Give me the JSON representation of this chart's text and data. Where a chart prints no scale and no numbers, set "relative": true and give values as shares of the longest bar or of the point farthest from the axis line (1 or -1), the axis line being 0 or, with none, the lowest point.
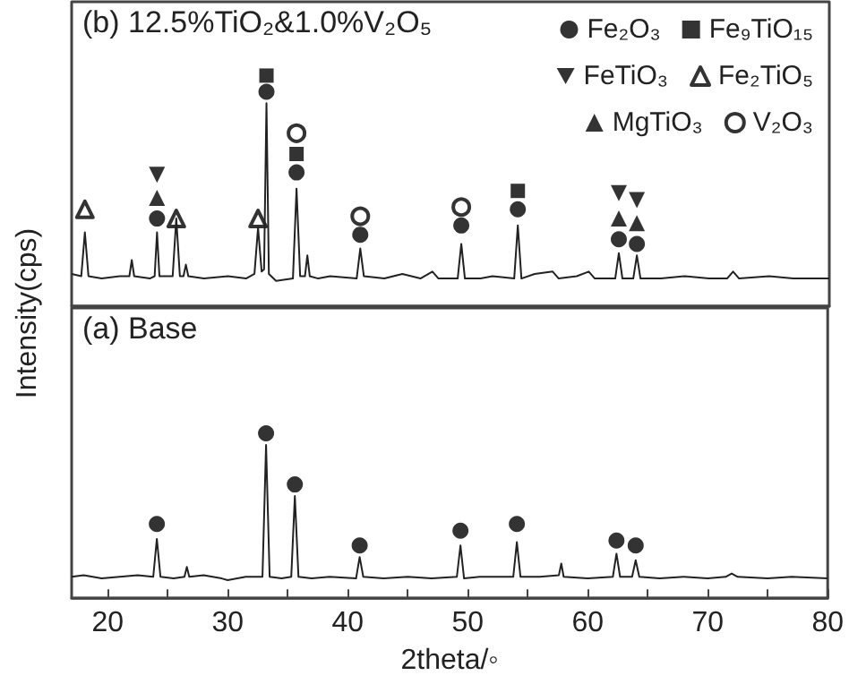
{
  "chart_data": [
    {
      "type": "line",
      "relative": true,
      "annotations": [
        "(b) 12.5%TiO₂&1.0%V₂O₅"
      ],
      "xlim": [
        17,
        80
      ],
      "tick_labels": false,
      "legend": "top right",
      "grid": false,
      "line_style": "solid",
      "marker": "none",
      "series": [
        {
          "color": "#222222",
          "x": [
            17,
            17.8,
            18.1,
            18.4,
            19.5,
            21,
            21.8,
            22,
            22.2,
            23.5,
            23.9,
            24.1,
            24.3,
            25.4,
            25.7,
            26,
            26.3,
            26.5,
            26.7,
            28,
            30,
            31.5,
            32.2,
            32.5,
            32.8,
            33,
            33.2,
            33.4,
            34,
            35.4,
            35.7,
            36,
            36.4,
            36.6,
            36.8,
            37.5,
            38.5,
            40.7,
            41,
            41.3,
            43,
            44.5,
            46,
            47,
            47.5,
            49.1,
            49.4,
            49.7,
            51,
            52,
            53.8,
            54.1,
            54.4,
            55.5,
            57,
            57.5,
            59,
            60,
            60.5,
            62.2,
            62.5,
            62.8,
            63.7,
            64,
            64.3,
            66,
            68,
            70,
            71.5,
            72,
            72.5,
            75,
            77,
            80
          ],
          "values": [
            0.14,
            0.13,
            0.32,
            0.13,
            0.12,
            0.13,
            0.13,
            0.2,
            0.13,
            0.12,
            0.13,
            0.32,
            0.13,
            0.13,
            0.38,
            0.13,
            0.13,
            0.18,
            0.13,
            0.12,
            0.13,
            0.12,
            0.14,
            0.34,
            0.15,
            0.16,
            0.88,
            0.14,
            0.11,
            0.12,
            0.51,
            0.13,
            0.13,
            0.22,
            0.13,
            0.12,
            0.13,
            0.12,
            0.25,
            0.13,
            0.12,
            0.14,
            0.12,
            0.15,
            0.12,
            0.12,
            0.27,
            0.12,
            0.12,
            0.13,
            0.12,
            0.35,
            0.12,
            0.14,
            0.15,
            0.12,
            0.13,
            0.15,
            0.12,
            0.12,
            0.23,
            0.12,
            0.12,
            0.22,
            0.12,
            0.12,
            0.13,
            0.12,
            0.12,
            0.15,
            0.12,
            0.13,
            0.12,
            0.12
          ]
        },
        {
          "type": "scatter",
          "name": "Fe₂O₃",
          "marker": "circle",
          "color": "#000000",
          "x": [
            24.1,
            33.2,
            35.7,
            41,
            49.4,
            54.1,
            62.5,
            64
          ],
          "values": [
            0.38,
            0.93,
            0.58,
            0.31,
            0.35,
            0.42,
            0.29,
            0.27
          ]
        },
        {
          "type": "scatter",
          "name": "Fe₉TiO₁₅",
          "marker": "square",
          "color": "#000000",
          "x": [
            33.2,
            35.7,
            54.1
          ],
          "values": [
            1,
            0.66,
            0.5
          ]
        },
        {
          "type": "scatter",
          "name": "FeTiO₃",
          "marker": "triangle-down",
          "color": "#000000",
          "x": [
            24.1,
            62.5,
            64
          ],
          "values": [
            0.57,
            0.49,
            0.46
          ]
        },
        {
          "type": "scatter",
          "name": "Fe₂TiO₅",
          "marker": "triangle-open",
          "color": "#000000",
          "x": [
            18.1,
            25.7,
            32.5
          ],
          "values": [
            0.42,
            0.38,
            0.38
          ]
        },
        {
          "type": "scatter",
          "name": "MgTiO₃",
          "marker": "triangle",
          "color": "#000000",
          "x": [
            24.1,
            62.5,
            64
          ],
          "values": [
            0.47,
            0.38,
            0.36
          ]
        },
        {
          "type": "scatter",
          "name": "V₂O₃",
          "marker": "circle-open",
          "color": "#000000",
          "x": [
            35.7,
            41,
            49.4
          ],
          "values": [
            0.75,
            0.39,
            0.43
          ]
        }
      ]
    },
    {
      "type": "line",
      "relative": true,
      "annotations": [
        "(a) Base"
      ],
      "xlabel": "2theta/◦",
      "ylabel": "Intensity(cps)",
      "xlim": [
        17,
        80
      ],
      "tick_labels": "x",
      "grid": false,
      "line_style": "solid",
      "marker": "none",
      "xticks": [
        20,
        {
          "value": 25,
          "label": null
        },
        30,
        {
          "value": 35,
          "label": null
        },
        40,
        {
          "value": 45,
          "label": null
        },
        50,
        {
          "value": 55,
          "label": null
        },
        60,
        {
          "value": 65,
          "label": null
        },
        70,
        {
          "value": 75,
          "label": null
        },
        80
      ],
      "series": [
        {
          "color": "#222222",
          "x": [
            17,
            18,
            19.5,
            21,
            22.5,
            23.8,
            24.1,
            24.4,
            25.5,
            26.4,
            26.6,
            26.8,
            28,
            29.5,
            30,
            31.5,
            32.9,
            33.2,
            33.5,
            34.5,
            35.3,
            35.6,
            35.9,
            37,
            38.5,
            40.7,
            41,
            41.3,
            43,
            45,
            47,
            49.1,
            49.4,
            49.7,
            51,
            53.8,
            54.1,
            54.4,
            56,
            57.6,
            57.8,
            58,
            60,
            62.1,
            62.4,
            62.7,
            63.7,
            64,
            64.3,
            66,
            68,
            70,
            71.5,
            72,
            72.5,
            75,
            77,
            80
          ],
          "values": [
            0.13,
            0.14,
            0.12,
            0.13,
            0.14,
            0.13,
            0.36,
            0.13,
            0.12,
            0.13,
            0.19,
            0.13,
            0.14,
            0.12,
            0.11,
            0.13,
            0.13,
            0.93,
            0.13,
            0.12,
            0.13,
            0.62,
            0.13,
            0.12,
            0.13,
            0.12,
            0.25,
            0.13,
            0.12,
            0.13,
            0.12,
            0.13,
            0.32,
            0.12,
            0.13,
            0.13,
            0.34,
            0.13,
            0.13,
            0.14,
            0.21,
            0.13,
            0.12,
            0.13,
            0.27,
            0.13,
            0.13,
            0.23,
            0.13,
            0.12,
            0.13,
            0.12,
            0.13,
            0.15,
            0.13,
            0.12,
            0.13,
            0.12
          ]
        },
        {
          "type": "scatter",
          "marker": "circle",
          "color": "#000000",
          "x": [
            24.1,
            33.2,
            35.6,
            41,
            49.4,
            54.1,
            62.4,
            64
          ],
          "values": [
            0.45,
            1,
            0.69,
            0.32,
            0.41,
            0.45,
            0.35,
            0.32
          ]
        }
      ]
    }
  ]
}
